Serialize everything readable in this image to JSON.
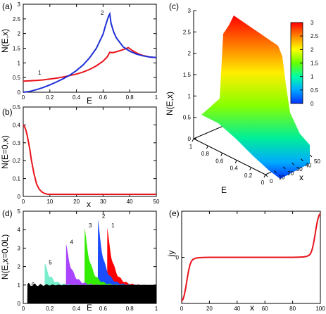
{
  "chart_data": [
    {
      "panel_label": "(a)",
      "type": "line",
      "xlabel": "E",
      "ylabel": "N(E,x)",
      "xlim": [
        0,
        1
      ],
      "ylim": [
        0,
        3
      ],
      "xticks": [
        "0",
        "0.2",
        "0.4",
        "0.6",
        "0.8",
        "1"
      ],
      "yticks": [
        "0",
        "0.5",
        "1",
        "1.5",
        "2",
        "2.5",
        "3"
      ],
      "series": [
        {
          "name": "1",
          "color": "#e8141c",
          "x": [
            0,
            0.05,
            0.1,
            0.15,
            0.2,
            0.25,
            0.3,
            0.35,
            0.4,
            0.45,
            0.5,
            0.55,
            0.6,
            0.63,
            0.65,
            0.67,
            0.7,
            0.75,
            0.79,
            0.82,
            0.86,
            0.9,
            0.95,
            1.0
          ],
          "y": [
            0.38,
            0.39,
            0.4,
            0.42,
            0.45,
            0.48,
            0.52,
            0.57,
            0.62,
            0.69,
            0.78,
            0.9,
            1.06,
            1.2,
            1.36,
            1.35,
            1.38,
            1.45,
            1.52,
            1.42,
            1.32,
            1.25,
            1.2,
            1.18
          ]
        },
        {
          "name": "2",
          "color": "#1f2fd6",
          "x": [
            0,
            0.05,
            0.1,
            0.15,
            0.2,
            0.25,
            0.3,
            0.35,
            0.4,
            0.45,
            0.5,
            0.55,
            0.6,
            0.62,
            0.64,
            0.65,
            0.66,
            0.68,
            0.7,
            0.75,
            0.8,
            0.85,
            0.9,
            0.95,
            1.0
          ],
          "y": [
            0.0,
            0.03,
            0.09,
            0.16,
            0.25,
            0.35,
            0.46,
            0.58,
            0.74,
            0.93,
            1.18,
            1.5,
            1.98,
            2.3,
            2.58,
            2.67,
            2.35,
            2.05,
            1.85,
            1.55,
            1.4,
            1.3,
            1.24,
            1.2,
            1.18
          ]
        }
      ]
    },
    {
      "panel_label": "(b)",
      "type": "line",
      "xlabel": "x",
      "ylabel": "N(E=0,x)",
      "xlim": [
        0,
        50
      ],
      "ylim": [
        0,
        0.5
      ],
      "xticks": [
        "0",
        "10",
        "20",
        "30",
        "40",
        "50"
      ],
      "yticks": [
        "0",
        "0.1",
        "0.2",
        "0.3",
        "0.4",
        "0.5"
      ],
      "series": [
        {
          "color": "#e8141c",
          "x": [
            0,
            0.5,
            1,
            1.5,
            2,
            2.5,
            3,
            3.5,
            4,
            4.5,
            5,
            6,
            7,
            8,
            9,
            10,
            12,
            15,
            20,
            30,
            40,
            50
          ],
          "y": [
            0.4,
            0.39,
            0.37,
            0.34,
            0.3,
            0.26,
            0.21,
            0.17,
            0.13,
            0.1,
            0.07,
            0.04,
            0.025,
            0.017,
            0.013,
            0.012,
            0.012,
            0.012,
            0.012,
            0.012,
            0.012,
            0.012
          ]
        }
      ]
    },
    {
      "panel_label": "(c)",
      "type": "surface",
      "xlabel": "E",
      "ylabel": "x",
      "zlabel": "N(E,x)",
      "xticks": [
        "1",
        "0.8",
        "0.6",
        "0.4",
        "0.2",
        "0"
      ],
      "yticks": [
        "0",
        "10",
        "20",
        "30",
        "40",
        "50"
      ],
      "zticks": [
        "0",
        "0.5",
        "1",
        "1.5",
        "2",
        "2.5",
        "3"
      ],
      "colorbar": {
        "ticks": [
          "0",
          "0.5",
          "1",
          "1.5",
          "2",
          "2.5",
          "3"
        ],
        "colors": [
          "#0033ff",
          "#00aaff",
          "#00ffaa",
          "#66ff00",
          "#ffff00",
          "#ff8800",
          "#ff0000"
        ]
      }
    },
    {
      "panel_label": "(d)",
      "type": "area",
      "xlabel": "E",
      "ylabel": "N(E,x=0,0L)",
      "xlim": [
        0,
        1
      ],
      "ylim": [
        0,
        5
      ],
      "xticks": [
        "0",
        "0.2",
        "0.4",
        "0.6",
        "0.8",
        "1"
      ],
      "yticks": [
        "0",
        "1",
        "2",
        "3",
        "4",
        "5"
      ],
      "series": [
        {
          "name": "1",
          "color": "#ff0000",
          "gap": 0.63,
          "peak": 4.2
        },
        {
          "name": "2",
          "color": "#1c4cff",
          "gap": 0.56,
          "peak": 4.7
        },
        {
          "name": "3",
          "color": "#33ee00",
          "gap": 0.46,
          "peak": 4.2
        },
        {
          "name": "4",
          "color": "#aa44ff",
          "gap": 0.32,
          "peak": 3.3
        },
        {
          "name": "5",
          "color": "#77eecc",
          "gap": 0.16,
          "peak": 2.2
        },
        {
          "name": "6",
          "color": "#000000",
          "gap": 0.03,
          "peak": 1.0
        }
      ]
    },
    {
      "panel_label": "(e)",
      "type": "line",
      "xlabel": "x",
      "ylabel": "jy",
      "xlim": [
        0,
        100
      ],
      "xticks": [
        "0",
        "20",
        "40",
        "60",
        "80",
        "100"
      ],
      "yticks": [
        "0"
      ],
      "series": [
        {
          "color": "#e8141c",
          "x": [
            0,
            1,
            2,
            3,
            4,
            5,
            6,
            7,
            8,
            10,
            12,
            15,
            20,
            40,
            60,
            80,
            85,
            88,
            90,
            92,
            93,
            94,
            95,
            96,
            97,
            98,
            99,
            100
          ],
          "y": [
            -1.0,
            -0.95,
            -0.85,
            -0.68,
            -0.48,
            -0.3,
            -0.17,
            -0.09,
            -0.05,
            -0.02,
            -0.01,
            -0.005,
            0,
            0,
            0,
            0,
            0.005,
            0.01,
            0.02,
            0.05,
            0.09,
            0.17,
            0.3,
            0.48,
            0.68,
            0.85,
            0.95,
            1.0
          ]
        }
      ]
    }
  ]
}
